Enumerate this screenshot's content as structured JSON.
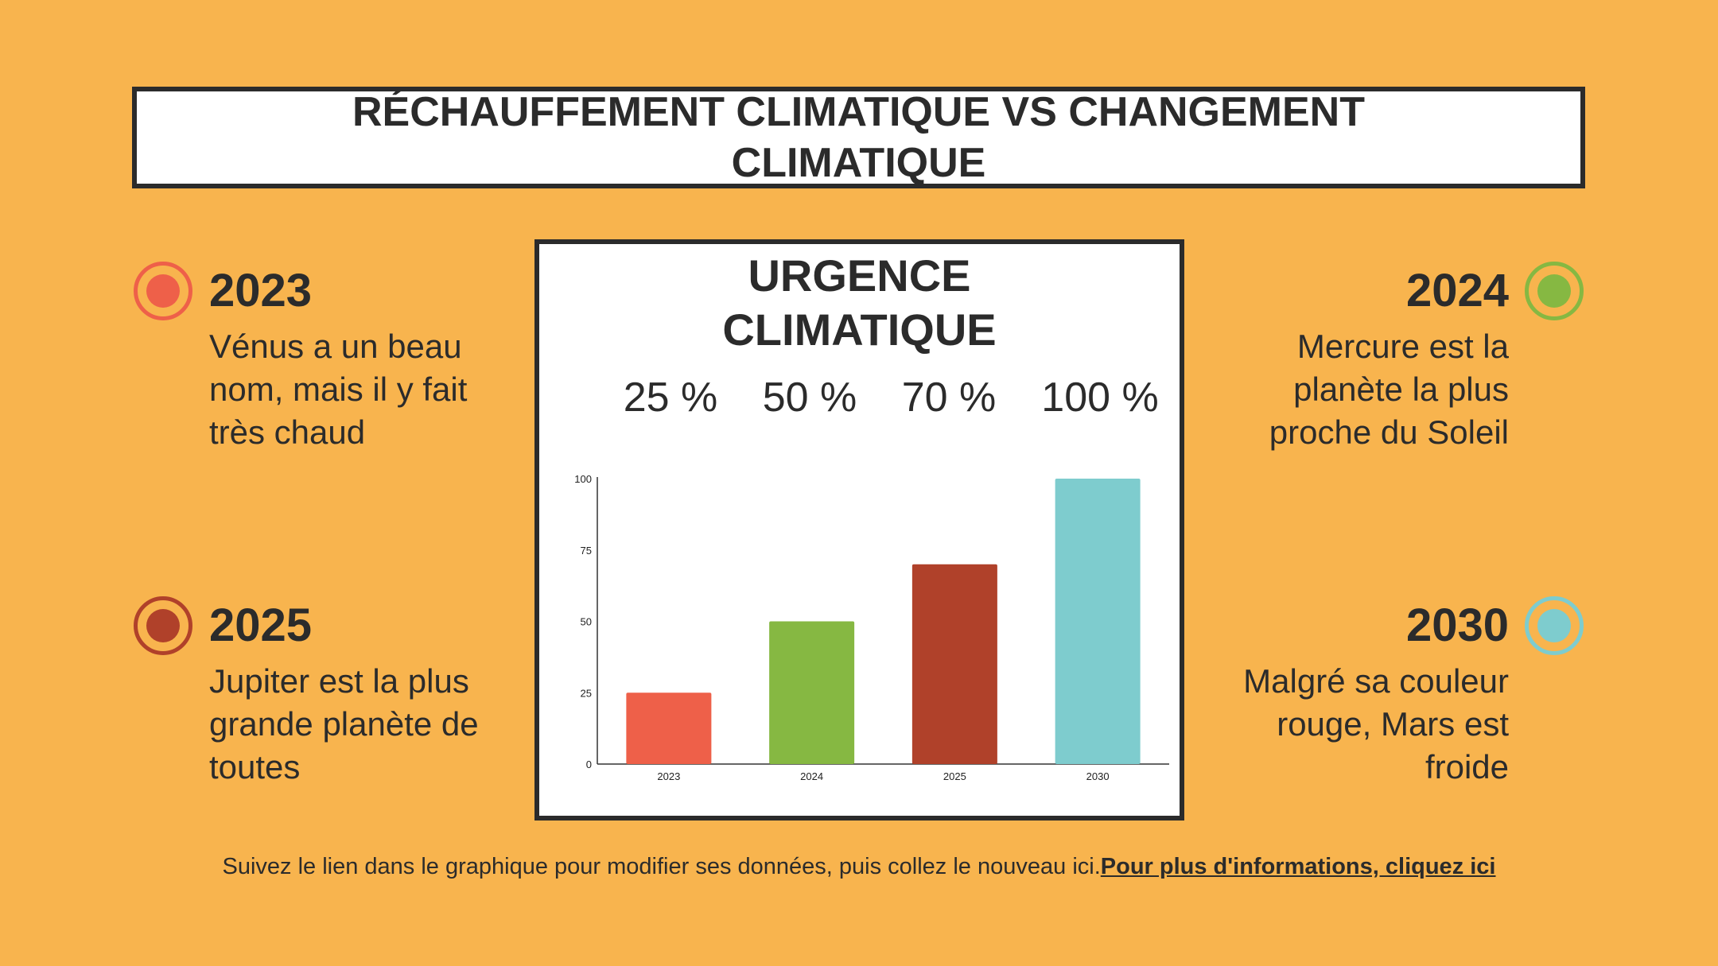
{
  "header": {
    "title": "RÉCHAUFFEMENT CLIMATIQUE VS CHANGEMENT CLIMATIQUE"
  },
  "milestones": [
    {
      "year": "2023",
      "text": "Vénus a un beau nom, mais il y fait très chaud",
      "color": "#EE6049"
    },
    {
      "year": "2024",
      "text": "Mercure est la planète la plus proche du Soleil",
      "color": "#86B842"
    },
    {
      "year": "2025",
      "text": "Jupiter est la plus grande planète de toutes",
      "color": "#B0412A"
    },
    {
      "year": "2030",
      "text": "Malgré sa couleur rouge, Mars est froide",
      "color": "#7ECCCE"
    }
  ],
  "chart_data": {
    "type": "bar",
    "title": "URGENCE CLIMATIQUE",
    "percent_labels": [
      "25 %",
      "50 %",
      "70 %",
      "100 %"
    ],
    "categories": [
      "2023",
      "2024",
      "2025",
      "2030"
    ],
    "values": [
      25,
      50,
      70,
      100
    ],
    "colors": [
      "#EE6049",
      "#86B842",
      "#B0412A",
      "#7ECCCE"
    ],
    "ylim": [
      0,
      100
    ],
    "yticks": [
      0,
      25,
      50,
      75,
      100
    ],
    "grid": false,
    "legend": "none"
  },
  "footer": {
    "text": "Suivez le lien dans le graphique pour modifier ses données, puis collez le nouveau ici.",
    "link_text": "Pour plus d'informations, cliquez ici"
  }
}
